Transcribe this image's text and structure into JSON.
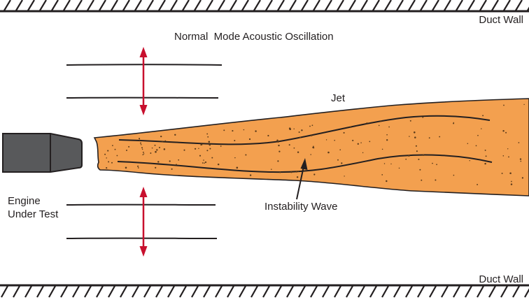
{
  "labels": {
    "duct_wall_top": "Duct Wall",
    "duct_wall_bottom": "Duct Wall",
    "acoustic_mode": "Normal  Mode Acoustic Oscillation",
    "jet": "Jet",
    "engine_line1": "Engine",
    "engine_line2": "Under Test",
    "instability_wave": "Instability Wave"
  },
  "colors": {
    "background": "#ffffff",
    "line": "#231f20",
    "jet_fill": "#f3a04f",
    "jet_dots": "#5a3a1a",
    "engine_fill": "#58595b",
    "arrow": "#c8102e"
  }
}
